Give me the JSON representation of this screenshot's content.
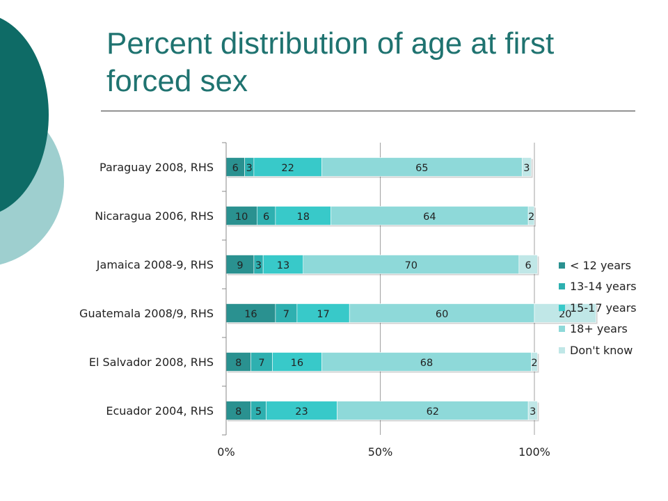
{
  "slide": {
    "title": "Percent distribution of age at first forced sex"
  },
  "colors": {
    "title": "#1f7370",
    "decor_dark": "#0e6b66",
    "decor_light": "#9ecfcf"
  },
  "chart_data": {
    "type": "bar",
    "orientation": "horizontal",
    "stacked": "percent",
    "title": "",
    "xlabel": "",
    "ylabel": "",
    "xlim": [
      0,
      100
    ],
    "x_ticks": [
      "0%",
      "50%",
      "100%"
    ],
    "grid": true,
    "legend_position": "right",
    "categories": [
      "Paraguay 2008, RHS",
      "Nicaragua 2006, RHS",
      "Jamaica 2008-9, RHS",
      "Guatemala 2008/9, RHS",
      "El Salvador 2008, RHS",
      "Ecuador 2004, RHS"
    ],
    "series": [
      {
        "name": "< 12 years",
        "color": "#2a9190",
        "values": [
          6,
          10,
          9,
          16,
          8,
          8
        ]
      },
      {
        "name": "13-14 years",
        "color": "#2eb0b0",
        "values": [
          3,
          6,
          3,
          7,
          7,
          5
        ]
      },
      {
        "name": "15-17 years",
        "color": "#38c9c9",
        "values": [
          22,
          18,
          13,
          17,
          16,
          23
        ]
      },
      {
        "name": "18+ years",
        "color": "#8ed9d9",
        "values": [
          65,
          64,
          70,
          60,
          68,
          62
        ]
      },
      {
        "name": "Don't know",
        "color": "#c0e7e7",
        "values": [
          3,
          2,
          6,
          20,
          2,
          3
        ]
      }
    ]
  }
}
